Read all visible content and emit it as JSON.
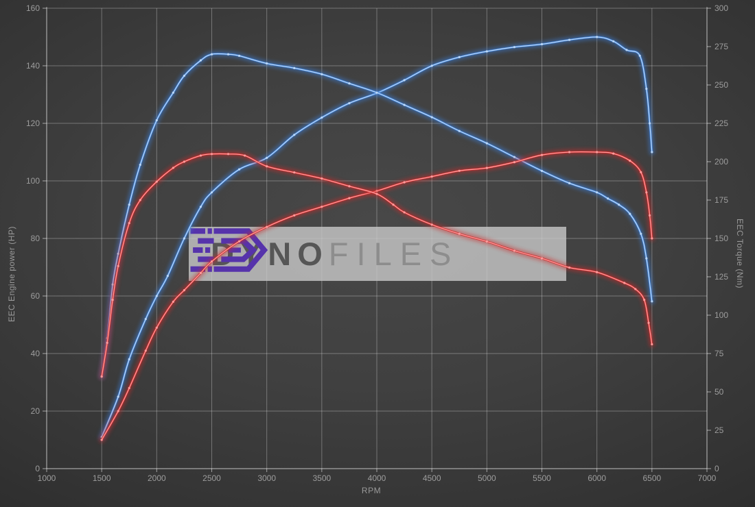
{
  "watermark": {
    "brand_dyno": "DYNO",
    "brand_files": "FILES",
    "logo_color": "#5633ab",
    "panel_color": "#c9c9c9"
  },
  "colors": {
    "background_center": "#484848",
    "background_edge": "#2a2a2a",
    "grid": "rgba(255,255,255,0.30)",
    "axis": "rgba(255,255,255,0.55)",
    "tick_label": "#9d9d9d",
    "power_tuned": "#3c7fd8",
    "power_tuned_core": "#bcd8f8",
    "power_stock": "#cd2b2b",
    "power_stock_core": "#ff9d9d"
  },
  "chart_data": {
    "type": "line",
    "title": "",
    "xlabel": "RPM",
    "ylabel_left": "EEC Engine power (HP)",
    "ylabel_right": "EEC Torque (Nm)",
    "x_range": [
      1000,
      7000
    ],
    "x_tick_step": 500,
    "y_left_range": [
      0,
      160
    ],
    "y_left_tick_step": 20,
    "y_right_range": [
      0,
      300
    ],
    "y_right_tick_step": 25,
    "grid": true,
    "legend_position": "none",
    "series": [
      {
        "name": "engine-power-tuned",
        "axis": "left",
        "unit": "HP",
        "color": "#3c7fd8",
        "core": "#bcd8f8",
        "peak": {
          "rpm": 6000,
          "value": 150
        },
        "points": [
          [
            1500,
            11
          ],
          [
            1650,
            25
          ],
          [
            1750,
            38
          ],
          [
            1900,
            52
          ],
          [
            2000,
            60
          ],
          [
            2100,
            67
          ],
          [
            2250,
            80
          ],
          [
            2400,
            91
          ],
          [
            2500,
            96
          ],
          [
            2750,
            104
          ],
          [
            3000,
            108
          ],
          [
            3250,
            116
          ],
          [
            3500,
            122
          ],
          [
            3750,
            127
          ],
          [
            4000,
            130.5
          ],
          [
            4250,
            135
          ],
          [
            4500,
            140
          ],
          [
            4750,
            143
          ],
          [
            5000,
            145
          ],
          [
            5250,
            146.5
          ],
          [
            5500,
            147.5
          ],
          [
            5750,
            149
          ],
          [
            6000,
            150
          ],
          [
            6150,
            148.5
          ],
          [
            6270,
            145.5
          ],
          [
            6390,
            143.5
          ],
          [
            6450,
            132
          ],
          [
            6480,
            120
          ],
          [
            6500,
            110
          ]
        ]
      },
      {
        "name": "engine-torque-tuned",
        "axis": "right",
        "unit": "Nm",
        "color": "#3c7fd8",
        "core": "#bcd8f8",
        "peak": {
          "rpm": 2500,
          "value": 270
        },
        "points": [
          [
            1500,
            60
          ],
          [
            1550,
            85
          ],
          [
            1600,
            120
          ],
          [
            1650,
            140
          ],
          [
            1750,
            172
          ],
          [
            1850,
            198
          ],
          [
            2000,
            227
          ],
          [
            2150,
            245
          ],
          [
            2250,
            256
          ],
          [
            2400,
            266
          ],
          [
            2500,
            270
          ],
          [
            2650,
            270
          ],
          [
            2750,
            269
          ],
          [
            3000,
            264
          ],
          [
            3250,
            261
          ],
          [
            3500,
            257
          ],
          [
            3750,
            251
          ],
          [
            4000,
            245
          ],
          [
            4250,
            237
          ],
          [
            4500,
            229
          ],
          [
            4750,
            220
          ],
          [
            5000,
            212
          ],
          [
            5250,
            203
          ],
          [
            5500,
            194
          ],
          [
            5750,
            186
          ],
          [
            6000,
            180
          ],
          [
            6100,
            176
          ],
          [
            6200,
            172
          ],
          [
            6300,
            166
          ],
          [
            6400,
            153
          ],
          [
            6450,
            137
          ],
          [
            6500,
            109
          ]
        ]
      },
      {
        "name": "engine-power-stock",
        "axis": "left",
        "unit": "HP",
        "color": "#cd2b2b",
        "core": "#ff9d9d",
        "peak": {
          "rpm": 5900,
          "value": 110
        },
        "points": [
          [
            1500,
            10
          ],
          [
            1650,
            20
          ],
          [
            1750,
            28
          ],
          [
            1900,
            41
          ],
          [
            2000,
            49
          ],
          [
            2150,
            58
          ],
          [
            2250,
            62
          ],
          [
            2400,
            68
          ],
          [
            2500,
            72
          ],
          [
            2750,
            79
          ],
          [
            3000,
            84
          ],
          [
            3250,
            88
          ],
          [
            3500,
            91
          ],
          [
            3750,
            94
          ],
          [
            4000,
            96.5
          ],
          [
            4250,
            99.5
          ],
          [
            4500,
            101.5
          ],
          [
            4750,
            103.5
          ],
          [
            5000,
            104.5
          ],
          [
            5250,
            106.5
          ],
          [
            5500,
            109
          ],
          [
            5750,
            110
          ],
          [
            6000,
            110
          ],
          [
            6150,
            109.5
          ],
          [
            6300,
            107
          ],
          [
            6400,
            103
          ],
          [
            6450,
            96
          ],
          [
            6480,
            88
          ],
          [
            6500,
            80
          ]
        ]
      },
      {
        "name": "engine-torque-stock",
        "axis": "right",
        "unit": "Nm",
        "color": "#cd2b2b",
        "core": "#ff9d9d",
        "peak": {
          "rpm": 2550,
          "value": 205
        },
        "points": [
          [
            1500,
            60
          ],
          [
            1550,
            82
          ],
          [
            1600,
            110
          ],
          [
            1650,
            132
          ],
          [
            1750,
            160
          ],
          [
            1850,
            175
          ],
          [
            2000,
            187
          ],
          [
            2150,
            196
          ],
          [
            2250,
            200
          ],
          [
            2400,
            204
          ],
          [
            2500,
            205
          ],
          [
            2650,
            205
          ],
          [
            2800,
            204
          ],
          [
            3000,
            197
          ],
          [
            3250,
            193
          ],
          [
            3500,
            189
          ],
          [
            3750,
            184
          ],
          [
            4000,
            179
          ],
          [
            4150,
            172
          ],
          [
            4250,
            167
          ],
          [
            4500,
            159
          ],
          [
            4750,
            153
          ],
          [
            5000,
            148
          ],
          [
            5250,
            142
          ],
          [
            5500,
            137
          ],
          [
            5750,
            131
          ],
          [
            6000,
            128
          ],
          [
            6250,
            121
          ],
          [
            6350,
            117
          ],
          [
            6430,
            110
          ],
          [
            6470,
            95
          ],
          [
            6500,
            81
          ]
        ]
      }
    ]
  }
}
